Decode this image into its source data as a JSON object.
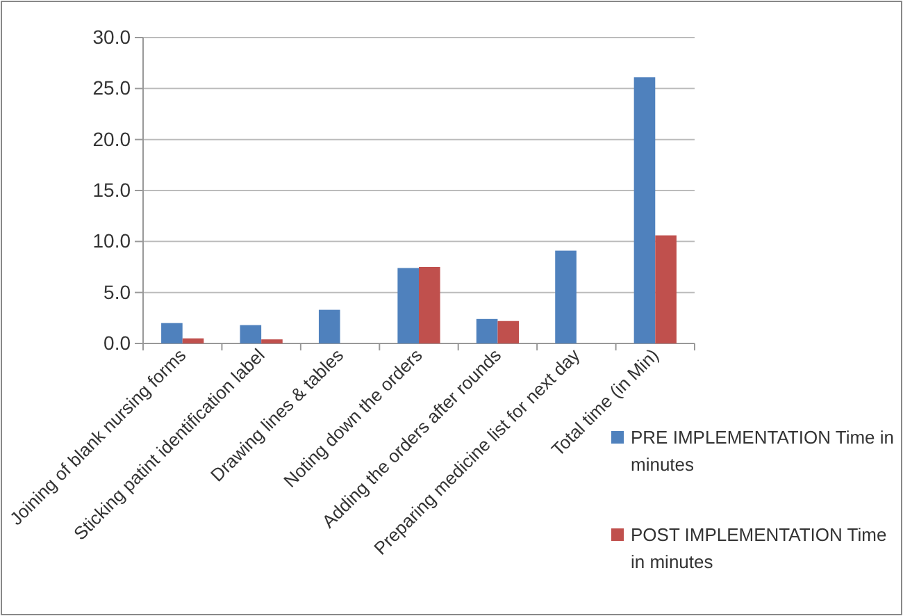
{
  "chart_data": {
    "type": "bar",
    "categories": [
      "Joining of blank nursing forms",
      "Sticking patint identification label",
      "Drawing lines & tables",
      "Noting down the orders",
      "Adding the orders after rounds",
      "Preparing medicine list for next day",
      "Total time (in Min)"
    ],
    "series": [
      {
        "name": "PRE IMPLEMENTATION Time in minutes",
        "color": "#4f81bd",
        "values": [
          2.0,
          1.8,
          3.3,
          7.4,
          2.4,
          9.1,
          26.1
        ]
      },
      {
        "name": "POST IMPLEMENTATION Time in minutes",
        "color": "#c0504d",
        "values": [
          0.5,
          0.4,
          null,
          7.5,
          2.2,
          null,
          10.6
        ]
      }
    ],
    "ylim": [
      0,
      30
    ],
    "yticks": [
      {
        "value": 0,
        "label": "0.0"
      },
      {
        "value": 5,
        "label": "5.0"
      },
      {
        "value": 10,
        "label": "10.0"
      },
      {
        "value": 15,
        "label": "15.0"
      },
      {
        "value": 20,
        "label": "20.0"
      },
      {
        "value": 25,
        "label": "25.0"
      },
      {
        "value": 30,
        "label": "30.0"
      }
    ],
    "grid": "y",
    "legend": "right"
  }
}
